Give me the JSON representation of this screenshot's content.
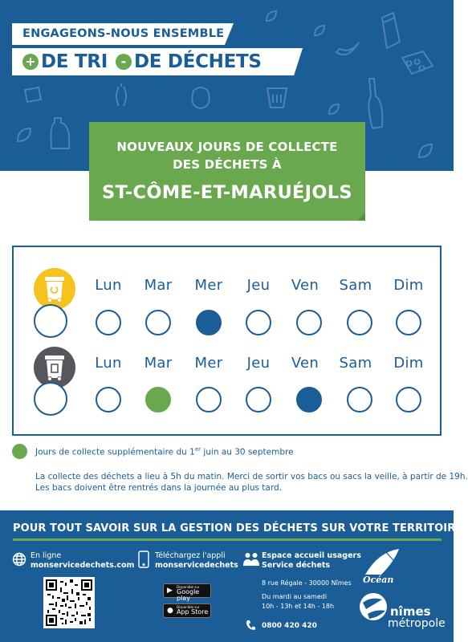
{
  "header": {
    "slogan_line1": "ENGAGEONS-NOUS ENSEMBLE",
    "slogan_plus_sign": "+",
    "slogan_tri": "DE TRI",
    "slogan_minus_sign": "-",
    "slogan_dechets": "DE DÉCHETS"
  },
  "banner": {
    "line1": "NOUVEAUX JOURS DE COLLECTE",
    "line2": "DES DÉCHETS À",
    "town": "ST-CÔME-ET-MARUÉJOLS"
  },
  "calendar": {
    "day_labels": [
      "Lun",
      "Mar",
      "Mer",
      "Jeu",
      "Ven",
      "Sam",
      "Dim"
    ],
    "rows": [
      {
        "bin": "yellow-recycling-bin-icon",
        "color": "#f6c21c",
        "collection_days": [
          "Mer"
        ],
        "collection_colors": [
          "blue"
        ]
      },
      {
        "bin": "grey-household-bin-icon",
        "color": "#56565d",
        "collection_days": [
          "Mar",
          "Ven"
        ],
        "collection_colors": [
          "green",
          "blue"
        ]
      }
    ]
  },
  "legend": {
    "text_before": "Jours de collecte supplémentaire du 1",
    "superscript": "er",
    "text_after": " juin au 30 septembre"
  },
  "info": {
    "line1": "La collecte des déchets a lieu à 5h du matin. Merci de sortir vos bacs ou sacs la veille, à partir de 19h.",
    "line2": "Les bacs doivent être rentrés dans la journée au plus tard."
  },
  "footer": {
    "title": "POUR TOUT SAVOIR SUR LA GESTION DES DÉCHETS SUR VOTRE TERRITOIRE",
    "online_label": "En ligne",
    "online_site": "monservicedechets.com",
    "app_label": "Téléchargez l'appli",
    "app_name": "monservicedechets",
    "google_small": "Disponible sur",
    "google_name": "Google play",
    "apple_small": "Disponible sur",
    "apple_name": "App Store",
    "office_line1": "Espace accueil usagers",
    "office_line2": "Service déchets",
    "address": "8 rue Régale - 30000 Nîmes",
    "hours_days": "Du mardi au samedi",
    "hours_times": "10h - 13h et 14h - 18h",
    "phone": "0800 420 420",
    "logo_ocean": "Océan",
    "logo_nimes": "nîmes",
    "logo_metropole": "métropole"
  },
  "colors": {
    "brand_blue": "#1b5d97",
    "green": "#6aa84f",
    "yellow": "#f6c21c",
    "grey": "#56565d"
  }
}
